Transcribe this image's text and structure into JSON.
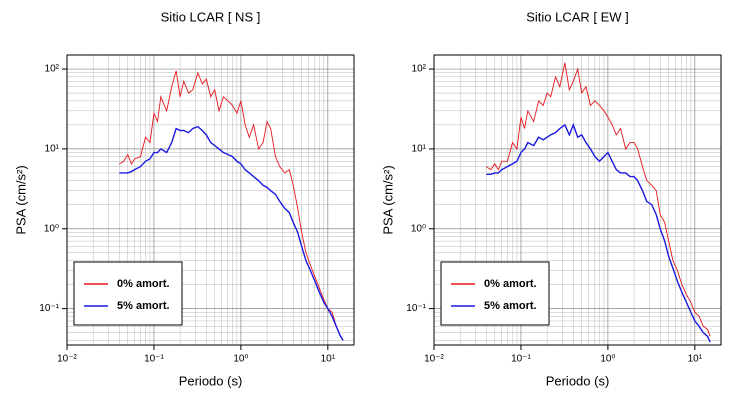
{
  "chart_data": [
    {
      "type": "line",
      "title": "Sitio LCAR [ NS ]",
      "x_label": "Periodo (s)",
      "y_label": "PSA (cm/s²)",
      "xscale": "log",
      "yscale": "log",
      "grid": true,
      "legend": "lower left",
      "xlim": [
        0.01,
        20
      ],
      "ylim": [
        0.035,
        150
      ],
      "xticks": [
        {
          "value": 0.01,
          "label": "10⁻²"
        },
        {
          "value": 0.1,
          "label": "10⁻¹"
        },
        {
          "value": 1,
          "label": "10⁰"
        },
        {
          "value": 10,
          "label": "10¹"
        }
      ],
      "yticks": [
        {
          "value": 0.1,
          "label": "10⁻¹"
        },
        {
          "value": 1,
          "label": "10⁰"
        },
        {
          "value": 10,
          "label": "10¹"
        },
        {
          "value": 100,
          "label": "10²"
        }
      ],
      "xminor": [
        0.02,
        0.03,
        0.04,
        0.05,
        0.06,
        0.07,
        0.08,
        0.09,
        0.2,
        0.3,
        0.4,
        0.5,
        0.6,
        0.7,
        0.8,
        0.9,
        2,
        3,
        4,
        5,
        6,
        7,
        8,
        9
      ],
      "yminor": [
        0.04,
        0.05,
        0.06,
        0.07,
        0.08,
        0.09,
        0.2,
        0.3,
        0.4,
        0.5,
        0.6,
        0.7,
        0.8,
        0.9,
        2,
        3,
        4,
        5,
        6,
        7,
        8,
        9,
        20,
        30,
        40,
        50,
        60,
        70,
        80,
        90
      ],
      "x": [
        0.04,
        0.045,
        0.05,
        0.055,
        0.06,
        0.07,
        0.08,
        0.09,
        0.1,
        0.11,
        0.12,
        0.14,
        0.16,
        0.18,
        0.2,
        0.22,
        0.25,
        0.28,
        0.32,
        0.36,
        0.4,
        0.45,
        0.5,
        0.56,
        0.63,
        0.71,
        0.8,
        0.9,
        1,
        1.12,
        1.25,
        1.4,
        1.6,
        1.8,
        2,
        2.2,
        2.5,
        2.8,
        3.2,
        3.6,
        4,
        4.5,
        5,
        5.6,
        6.3,
        7.1,
        8,
        9,
        10,
        11.2,
        12.5,
        14,
        15
      ],
      "series": [
        {
          "name": "0% amort.",
          "color": "#e8161b",
          "values": [
            6.5,
            7,
            8.5,
            6.5,
            7.5,
            8,
            14,
            12,
            28,
            22,
            45,
            30,
            60,
            95,
            45,
            70,
            50,
            55,
            90,
            65,
            75,
            45,
            55,
            30,
            45,
            40,
            35,
            28,
            40,
            20,
            14,
            20,
            10,
            12,
            22,
            18,
            8,
            6,
            5,
            5.5,
            3.5,
            1.8,
            0.9,
            0.5,
            0.35,
            0.25,
            0.18,
            0.13,
            0.1,
            0.09,
            0.06,
            0.045,
            0.04
          ]
        },
        {
          "name": "5% amort.",
          "color": "#1a1ae0",
          "values": [
            5,
            5,
            5,
            5.2,
            5.5,
            6,
            7,
            7.5,
            9,
            9,
            10,
            9,
            12,
            18,
            17,
            17,
            16,
            18,
            19,
            17,
            15,
            12,
            11,
            10,
            9,
            8.5,
            8,
            7,
            6.5,
            5.5,
            5,
            4.5,
            4,
            3.5,
            3.3,
            3,
            2.7,
            2.2,
            1.8,
            1.6,
            1.2,
            0.9,
            0.6,
            0.4,
            0.3,
            0.22,
            0.16,
            0.12,
            0.1,
            0.08,
            0.06,
            0.045,
            0.04
          ]
        }
      ]
    },
    {
      "type": "line",
      "title": "Sitio LCAR [ EW ]",
      "x_label": "Periodo (s)",
      "y_label": "PSA (cm/s²)",
      "xscale": "log",
      "yscale": "log",
      "grid": true,
      "legend": "lower left",
      "xlim": [
        0.01,
        20
      ],
      "ylim": [
        0.035,
        150
      ],
      "xticks": [
        {
          "value": 0.01,
          "label": "10⁻²"
        },
        {
          "value": 0.1,
          "label": "10⁻¹"
        },
        {
          "value": 1,
          "label": "10⁰"
        },
        {
          "value": 10,
          "label": "10¹"
        }
      ],
      "yticks": [
        {
          "value": 0.1,
          "label": "10⁻¹"
        },
        {
          "value": 1,
          "label": "10⁰"
        },
        {
          "value": 10,
          "label": "10¹"
        },
        {
          "value": 100,
          "label": "10²"
        }
      ],
      "xminor": [
        0.02,
        0.03,
        0.04,
        0.05,
        0.06,
        0.07,
        0.08,
        0.09,
        0.2,
        0.3,
        0.4,
        0.5,
        0.6,
        0.7,
        0.8,
        0.9,
        2,
        3,
        4,
        5,
        6,
        7,
        8,
        9
      ],
      "yminor": [
        0.04,
        0.05,
        0.06,
        0.07,
        0.08,
        0.09,
        0.2,
        0.3,
        0.4,
        0.5,
        0.6,
        0.7,
        0.8,
        0.9,
        2,
        3,
        4,
        5,
        6,
        7,
        8,
        9,
        20,
        30,
        40,
        50,
        60,
        70,
        80,
        90
      ],
      "x": [
        0.04,
        0.045,
        0.05,
        0.055,
        0.06,
        0.07,
        0.08,
        0.09,
        0.1,
        0.11,
        0.12,
        0.14,
        0.16,
        0.18,
        0.2,
        0.22,
        0.25,
        0.28,
        0.32,
        0.36,
        0.4,
        0.45,
        0.5,
        0.56,
        0.63,
        0.71,
        0.8,
        0.9,
        1,
        1.12,
        1.25,
        1.4,
        1.6,
        1.8,
        2,
        2.2,
        2.5,
        2.8,
        3.2,
        3.6,
        4,
        4.5,
        5,
        5.6,
        6.3,
        7.1,
        8,
        9,
        10,
        11.2,
        12.5,
        14,
        15
      ],
      "series": [
        {
          "name": "0% amort.",
          "color": "#e8161b",
          "values": [
            6,
            5.5,
            6.5,
            5.5,
            7,
            7,
            12,
            10,
            25,
            18,
            30,
            22,
            40,
            35,
            50,
            45,
            80,
            60,
            120,
            55,
            70,
            100,
            50,
            60,
            35,
            40,
            35,
            30,
            25,
            20,
            15,
            18,
            10,
            12,
            12,
            10,
            6,
            4,
            3.5,
            3,
            1.5,
            1.2,
            0.7,
            0.4,
            0.3,
            0.2,
            0.15,
            0.12,
            0.09,
            0.08,
            0.06,
            0.055,
            0.045
          ]
        },
        {
          "name": "5% amort.",
          "color": "#1a1ae0",
          "values": [
            4.8,
            4.8,
            5,
            5,
            5.5,
            6,
            6.5,
            7,
            9,
            10,
            12,
            11,
            14,
            13,
            14,
            15,
            16,
            18,
            20,
            15,
            20,
            14,
            15,
            12,
            10,
            8,
            7,
            8,
            9,
            7,
            5.5,
            5,
            5,
            4.5,
            4.5,
            4,
            3,
            2.2,
            2,
            1.5,
            1,
            0.7,
            0.45,
            0.32,
            0.22,
            0.16,
            0.12,
            0.09,
            0.07,
            0.06,
            0.05,
            0.045,
            0.038
          ]
        }
      ]
    }
  ]
}
